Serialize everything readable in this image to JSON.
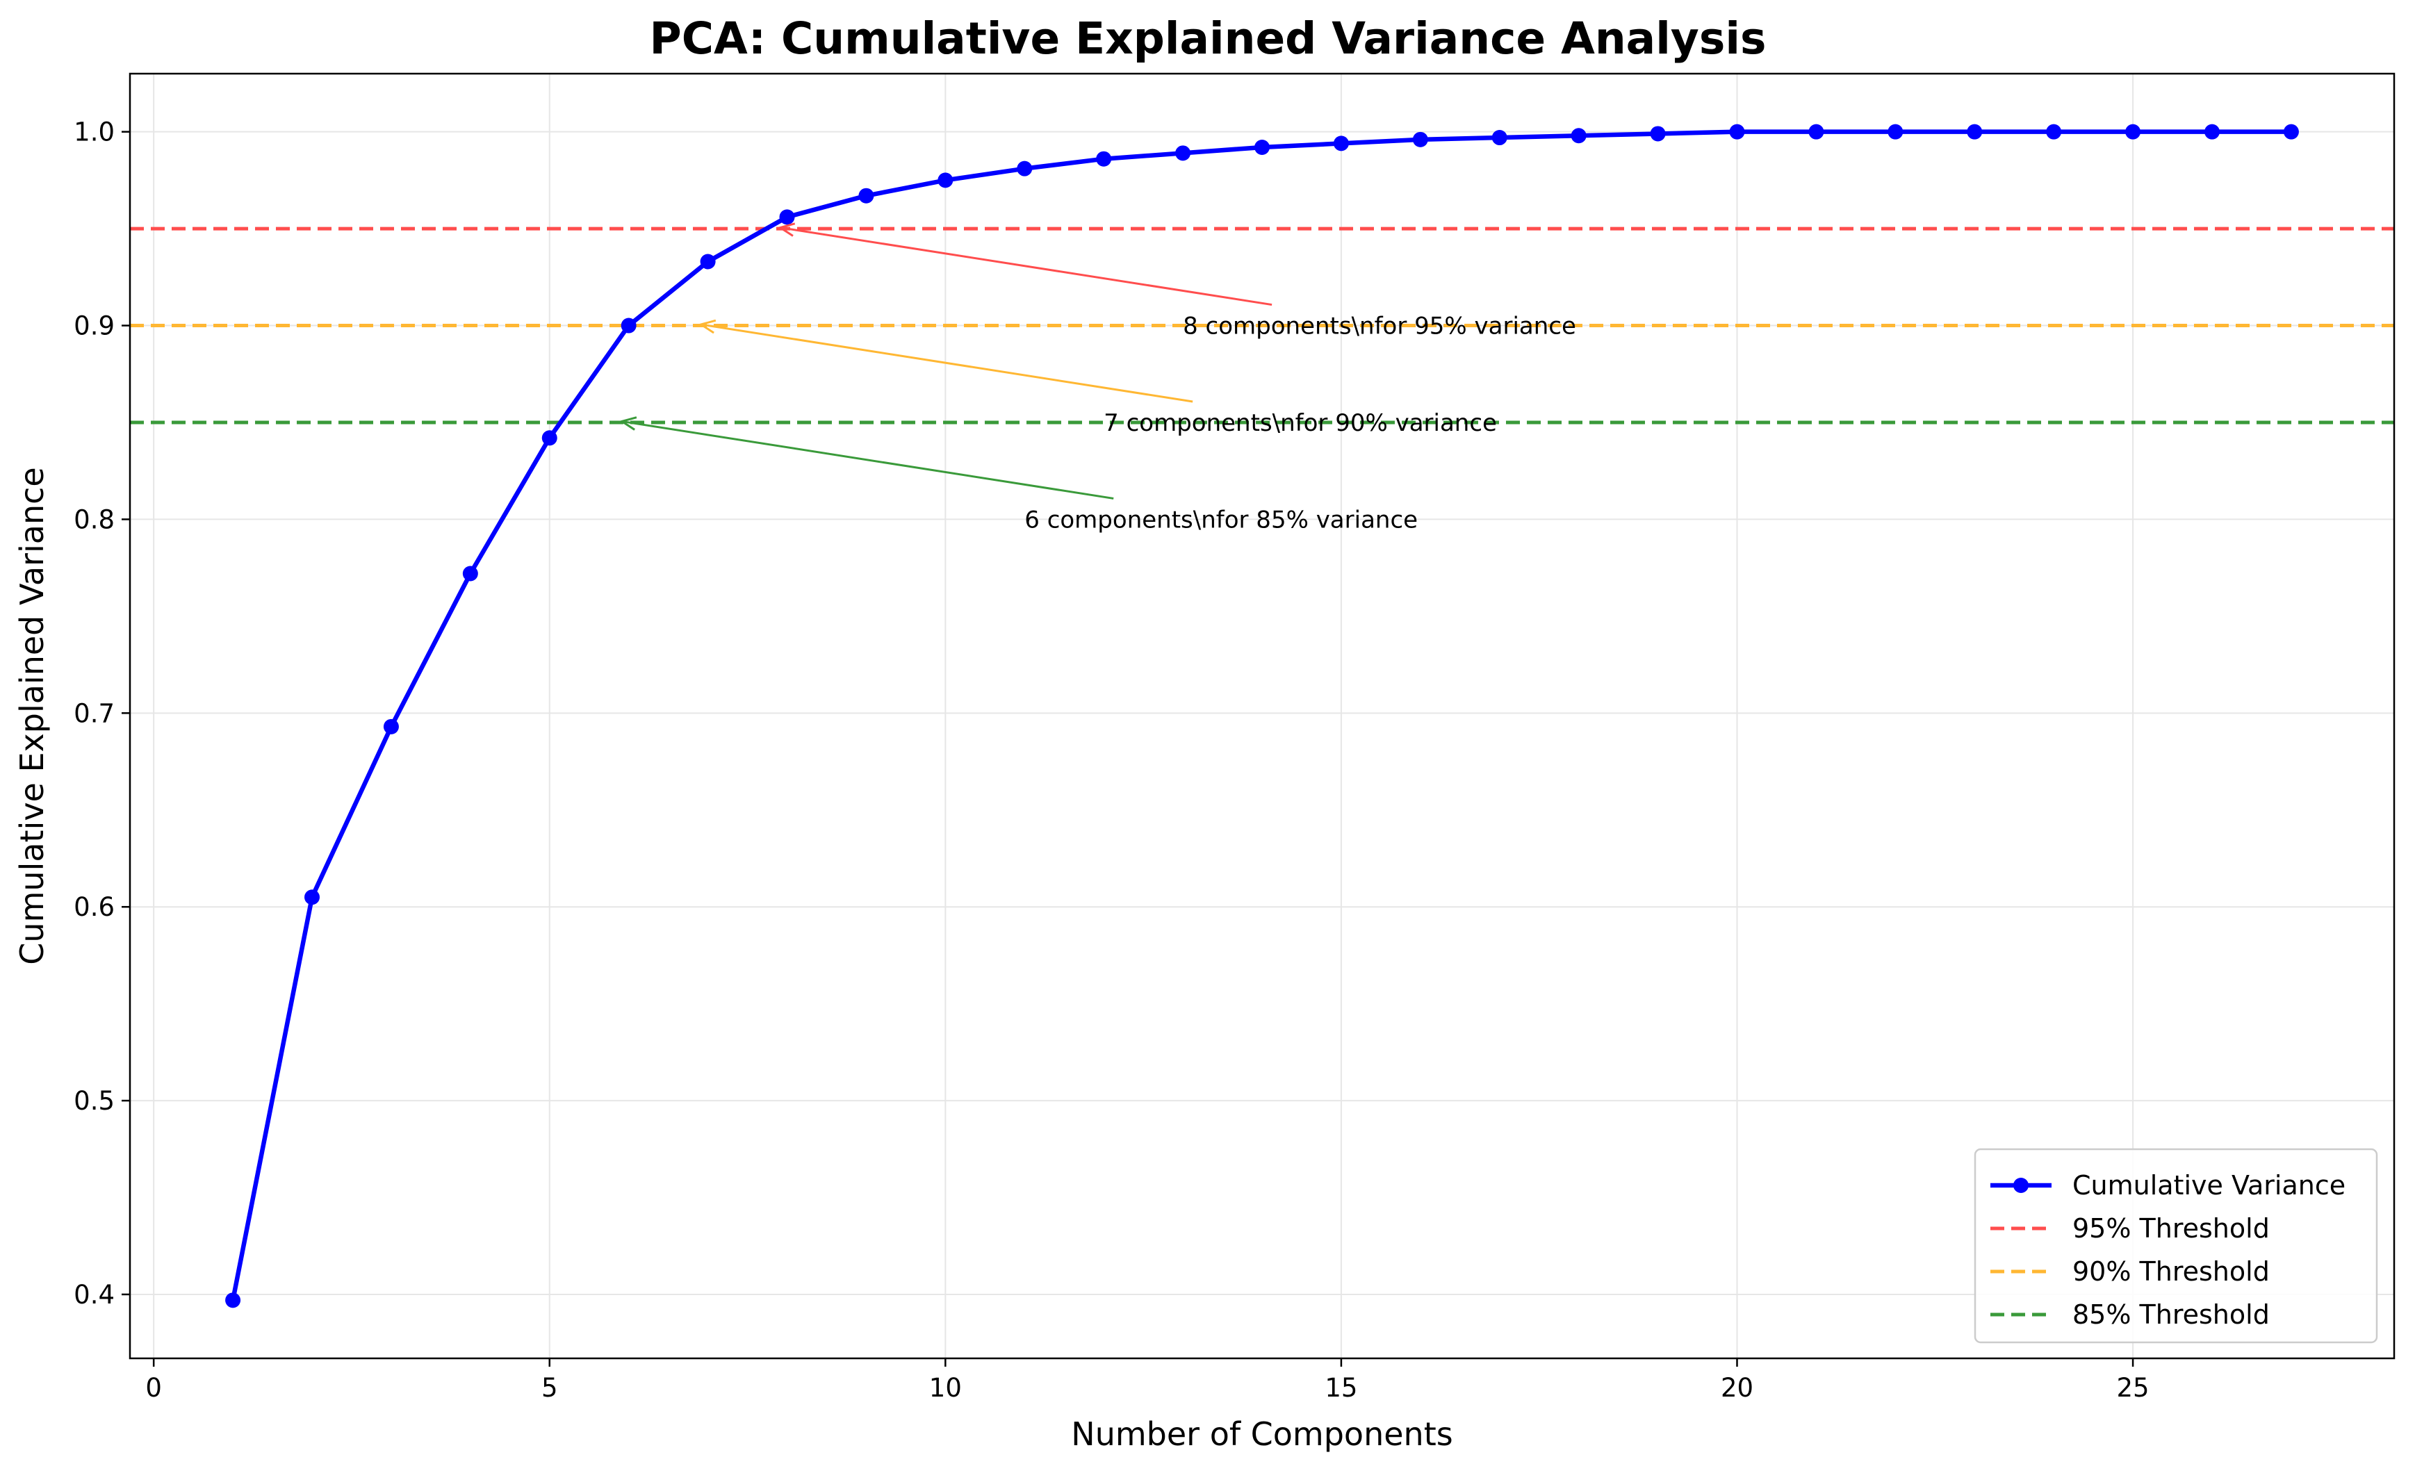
{
  "chart_data": {
    "type": "line",
    "title": "PCA: Cumulative Explained Variance Analysis",
    "xlabel": "Number of Components",
    "ylabel": "Cumulative Explained Variance",
    "xlim": [
      -0.3,
      28.3
    ],
    "ylim": [
      0.367,
      1.03
    ],
    "xticks": [
      0,
      5,
      10,
      15,
      20,
      25
    ],
    "yticks": [
      0.4,
      0.5,
      0.6,
      0.7,
      0.8,
      0.9,
      1.0
    ],
    "xtick_labels": [
      "0",
      "5",
      "10",
      "15",
      "20",
      "25"
    ],
    "ytick_labels": [
      "0.4",
      "0.5",
      "0.6",
      "0.7",
      "0.8",
      "0.9",
      "1.0"
    ],
    "grid": true,
    "legend_position": "bottom-right",
    "series": [
      {
        "name": "Cumulative Variance",
        "color": "#0000ff",
        "marker": "circle",
        "x": [
          1,
          2,
          3,
          4,
          5,
          6,
          7,
          8,
          9,
          10,
          11,
          12,
          13,
          14,
          15,
          16,
          17,
          18,
          19,
          20,
          21,
          22,
          23,
          24,
          25,
          26,
          27
        ],
        "values": [
          0.397,
          0.605,
          0.693,
          0.772,
          0.842,
          0.9,
          0.933,
          0.956,
          0.967,
          0.975,
          0.981,
          0.986,
          0.989,
          0.992,
          0.994,
          0.996,
          0.997,
          0.998,
          0.999,
          1.0,
          1.0,
          1.0,
          1.0,
          1.0,
          1.0,
          1.0,
          1.0
        ]
      }
    ],
    "thresholds": [
      {
        "name": "95% Threshold",
        "value": 0.95,
        "color": "#ff4d4d"
      },
      {
        "name": "90% Threshold",
        "value": 0.9,
        "color": "#ffb733"
      },
      {
        "name": "85% Threshold",
        "value": 0.85,
        "color": "#3a9a3a"
      }
    ],
    "annotations": [
      {
        "text": "8 components\\nfor 95% variance",
        "point": [
          8,
          0.95
        ],
        "text_at": [
          13,
          0.9
        ],
        "color": "#ff4d4d"
      },
      {
        "text": "7 components\\nfor 90% variance",
        "point": [
          7,
          0.9
        ],
        "text_at": [
          12,
          0.85
        ],
        "color": "#ffb733"
      },
      {
        "text": "6 components\\nfor 85% variance",
        "point": [
          6,
          0.85
        ],
        "text_at": [
          11,
          0.8
        ],
        "color": "#3a9a3a"
      }
    ]
  }
}
